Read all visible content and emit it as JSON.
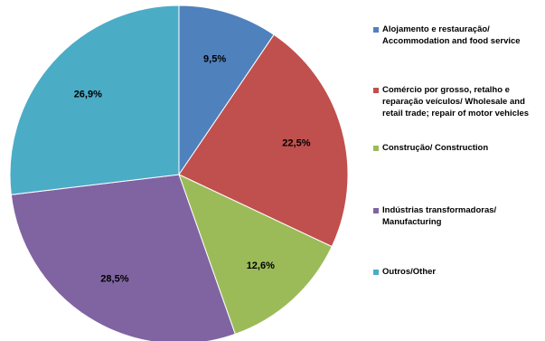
{
  "chart_data": {
    "type": "pie",
    "slices": [
      {
        "label": "Alojamento e restauração/ Accommodation and food service",
        "value": 9.5,
        "value_label": "9,5%",
        "color": "#4F81BD"
      },
      {
        "label": "Comércio por grosso, retalho e reparação veículos/ Wholesale and retail trade; repair of motor vehicles",
        "value": 22.5,
        "value_label": "22,5%",
        "color": "#C0504D"
      },
      {
        "label": "Construção/ Construction",
        "value": 12.6,
        "value_label": "12,6%",
        "color": "#9BBB59"
      },
      {
        "label": "Indústrias transformadoras/ Manufacturing",
        "value": 28.5,
        "value_label": "28,5%",
        "color": "#8064A2"
      },
      {
        "label": "Outros/Other",
        "value": 26.9,
        "value_label": "26,9%",
        "color": "#4BACC6"
      }
    ],
    "legend_position": "right"
  }
}
